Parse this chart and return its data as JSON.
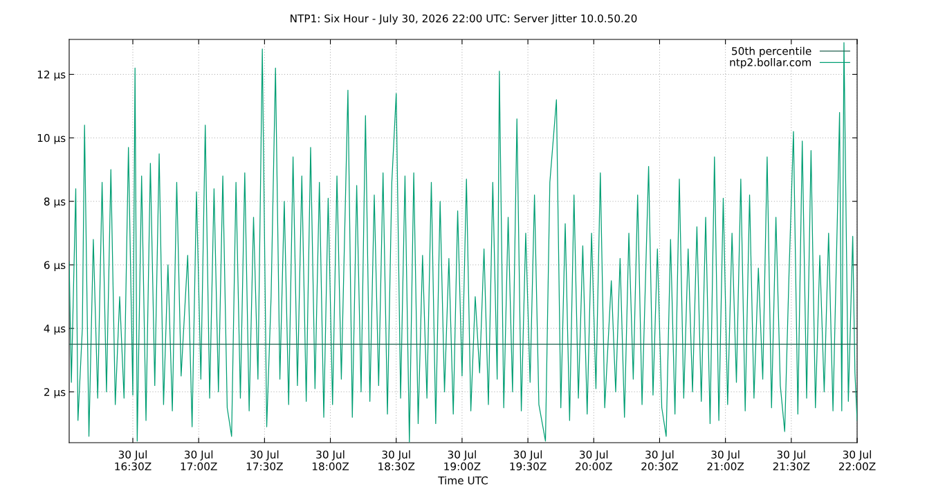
{
  "chart_data": {
    "type": "line",
    "title": "NTP1: Six Hour - July 30, 2026 22:00 UTC: Server Jitter 10.0.50.20",
    "xlabel": "Time UTC",
    "xlim": [
      "2026-07-30T16:01",
      "2026-07-30T22:00"
    ],
    "xticks": [
      {
        "value": "2026-07-30T16:30",
        "label": "30 Jul\n16:30Z"
      },
      {
        "value": "2026-07-30T17:00",
        "label": "30 Jul\n17:00Z"
      },
      {
        "value": "2026-07-30T17:30",
        "label": "30 Jul\n17:30Z"
      },
      {
        "value": "2026-07-30T18:00",
        "label": "30 Jul\n18:00Z"
      },
      {
        "value": "2026-07-30T18:30",
        "label": "30 Jul\n18:30Z"
      },
      {
        "value": "2026-07-30T19:00",
        "label": "30 Jul\n19:00Z"
      },
      {
        "value": "2026-07-30T19:30",
        "label": "30 Jul\n19:30Z"
      },
      {
        "value": "2026-07-30T20:00",
        "label": "30 Jul\n20:00Z"
      },
      {
        "value": "2026-07-30T20:30",
        "label": "30 Jul\n20:30Z"
      },
      {
        "value": "2026-07-30T21:00",
        "label": "30 Jul\n21:00Z"
      },
      {
        "value": "2026-07-30T21:30",
        "label": "30 Jul\n21:30Z"
      },
      {
        "value": "2026-07-30T22:00",
        "label": "30 Jul\n22:00Z"
      }
    ],
    "ylim": [
      0.4,
      13.1
    ],
    "yticks": [
      {
        "value": 2,
        "label": "2 µs"
      },
      {
        "value": 4,
        "label": "4 µs"
      },
      {
        "value": 6,
        "label": "6 µs"
      },
      {
        "value": 8,
        "label": "8 µs"
      },
      {
        "value": 10,
        "label": "10 µs"
      },
      {
        "value": 12,
        "label": "12 µs"
      }
    ],
    "grid": true,
    "legend": "top right",
    "line_style": "solid",
    "series": [
      {
        "name": "50th percentile",
        "color": "#1f5f4c",
        "x": [
          "2026-07-30T16:01",
          "2026-07-30T22:00"
        ],
        "values": [
          3.5,
          3.5
        ]
      },
      {
        "name": "ntp2.bollar.com",
        "color": "#009e73",
        "x": [
          "2026-07-30T16:01",
          "2026-07-30T16:02",
          "2026-07-30T16:04",
          "2026-07-30T16:05",
          "2026-07-30T16:07",
          "2026-07-30T16:08",
          "2026-07-30T16:10",
          "2026-07-30T16:12",
          "2026-07-30T16:14",
          "2026-07-30T16:16",
          "2026-07-30T16:18",
          "2026-07-30T16:20",
          "2026-07-30T16:22",
          "2026-07-30T16:24",
          "2026-07-30T16:26",
          "2026-07-30T16:28",
          "2026-07-30T16:30",
          "2026-07-30T16:31",
          "2026-07-30T16:32",
          "2026-07-30T16:34",
          "2026-07-30T16:36",
          "2026-07-30T16:38",
          "2026-07-30T16:40",
          "2026-07-30T16:42",
          "2026-07-30T16:44",
          "2026-07-30T16:46",
          "2026-07-30T16:48",
          "2026-07-30T16:50",
          "2026-07-30T16:52",
          "2026-07-30T16:55",
          "2026-07-30T16:57",
          "2026-07-30T16:59",
          "2026-07-30T17:01",
          "2026-07-30T17:03",
          "2026-07-30T17:05",
          "2026-07-30T17:07",
          "2026-07-30T17:09",
          "2026-07-30T17:11",
          "2026-07-30T17:13",
          "2026-07-30T17:15",
          "2026-07-30T17:17",
          "2026-07-30T17:19",
          "2026-07-30T17:21",
          "2026-07-30T17:23",
          "2026-07-30T17:25",
          "2026-07-30T17:27",
          "2026-07-30T17:29",
          "2026-07-30T17:31",
          "2026-07-30T17:33",
          "2026-07-30T17:35",
          "2026-07-30T17:37",
          "2026-07-30T17:39",
          "2026-07-30T17:41",
          "2026-07-30T17:43",
          "2026-07-30T17:45",
          "2026-07-30T17:47",
          "2026-07-30T17:49",
          "2026-07-30T17:51",
          "2026-07-30T17:53",
          "2026-07-30T17:55",
          "2026-07-30T17:57",
          "2026-07-30T17:59",
          "2026-07-30T18:01",
          "2026-07-30T18:03",
          "2026-07-30T18:05",
          "2026-07-30T18:08",
          "2026-07-30T18:10",
          "2026-07-30T18:12",
          "2026-07-30T18:14",
          "2026-07-30T18:16",
          "2026-07-30T18:18",
          "2026-07-30T18:20",
          "2026-07-30T18:22",
          "2026-07-30T18:24",
          "2026-07-30T18:26",
          "2026-07-30T18:28",
          "2026-07-30T18:30",
          "2026-07-30T18:32",
          "2026-07-30T18:34",
          "2026-07-30T18:36",
          "2026-07-30T18:38",
          "2026-07-30T18:40",
          "2026-07-30T18:42",
          "2026-07-30T18:44",
          "2026-07-30T18:46",
          "2026-07-30T18:48",
          "2026-07-30T18:50",
          "2026-07-30T18:52",
          "2026-07-30T18:54",
          "2026-07-30T18:56",
          "2026-07-30T18:58",
          "2026-07-30T19:00",
          "2026-07-30T19:02",
          "2026-07-30T19:04",
          "2026-07-30T19:06",
          "2026-07-30T19:08",
          "2026-07-30T19:10",
          "2026-07-30T19:12",
          "2026-07-30T19:14",
          "2026-07-30T19:16",
          "2026-07-30T19:17",
          "2026-07-30T19:19",
          "2026-07-30T19:21",
          "2026-07-30T19:23",
          "2026-07-30T19:25",
          "2026-07-30T19:27",
          "2026-07-30T19:29",
          "2026-07-30T19:31",
          "2026-07-30T19:33",
          "2026-07-30T19:35",
          "2026-07-30T19:38",
          "2026-07-30T19:40",
          "2026-07-30T19:43",
          "2026-07-30T19:45",
          "2026-07-30T19:47",
          "2026-07-30T19:49",
          "2026-07-30T19:51",
          "2026-07-30T19:53",
          "2026-07-30T19:55",
          "2026-07-30T19:57",
          "2026-07-30T19:59",
          "2026-07-30T20:01",
          "2026-07-30T20:03",
          "2026-07-30T20:05",
          "2026-07-30T20:08",
          "2026-07-30T20:10",
          "2026-07-30T20:12",
          "2026-07-30T20:14",
          "2026-07-30T20:16",
          "2026-07-30T20:18",
          "2026-07-30T20:20",
          "2026-07-30T20:22",
          "2026-07-30T20:25",
          "2026-07-30T20:27",
          "2026-07-30T20:29",
          "2026-07-30T20:31",
          "2026-07-30T20:33",
          "2026-07-30T20:35",
          "2026-07-30T20:37",
          "2026-07-30T20:39",
          "2026-07-30T20:41",
          "2026-07-30T20:43",
          "2026-07-30T20:45",
          "2026-07-30T20:47",
          "2026-07-30T20:49",
          "2026-07-30T20:51",
          "2026-07-30T20:53",
          "2026-07-30T20:55",
          "2026-07-30T20:57",
          "2026-07-30T20:59",
          "2026-07-30T21:01",
          "2026-07-30T21:03",
          "2026-07-30T21:05",
          "2026-07-30T21:07",
          "2026-07-30T21:09",
          "2026-07-30T21:11",
          "2026-07-30T21:13",
          "2026-07-30T21:15",
          "2026-07-30T21:17",
          "2026-07-30T21:19",
          "2026-07-30T21:21",
          "2026-07-30T21:23",
          "2026-07-30T21:25",
          "2026-07-30T21:27",
          "2026-07-30T21:29",
          "2026-07-30T21:31",
          "2026-07-30T21:33",
          "2026-07-30T21:35",
          "2026-07-30T21:37",
          "2026-07-30T21:39",
          "2026-07-30T21:41",
          "2026-07-30T21:43",
          "2026-07-30T21:45",
          "2026-07-30T21:47",
          "2026-07-30T21:49",
          "2026-07-30T21:51",
          "2026-07-30T21:52",
          "2026-07-30T21:53",
          "2026-07-30T21:54",
          "2026-07-30T21:56",
          "2026-07-30T21:58",
          "2026-07-30T21:59",
          "2026-07-30T22:00"
        ],
        "values": [
          6.1,
          2.3,
          8.4,
          1.1,
          4.0,
          10.4,
          0.6,
          6.8,
          1.8,
          8.6,
          2.0,
          9.0,
          1.6,
          5.0,
          1.8,
          9.7,
          1.9,
          12.2,
          0.45,
          8.8,
          1.1,
          9.2,
          2.2,
          9.5,
          1.6,
          6.0,
          1.4,
          8.6,
          2.5,
          6.3,
          0.9,
          8.3,
          2.4,
          10.4,
          1.8,
          8.4,
          2.0,
          8.8,
          1.5,
          0.6,
          8.6,
          1.8,
          8.9,
          1.4,
          7.5,
          2.4,
          12.8,
          0.9,
          5.0,
          12.2,
          2.4,
          8.0,
          1.6,
          9.4,
          2.2,
          8.8,
          1.7,
          9.7,
          2.1,
          8.6,
          1.2,
          8.1,
          1.6,
          8.8,
          2.4,
          11.5,
          1.2,
          8.5,
          2.0,
          10.7,
          1.7,
          8.2,
          2.2,
          8.9,
          1.3,
          8.6,
          11.4,
          1.8,
          8.8,
          0.42,
          8.9,
          1.0,
          6.3,
          1.8,
          8.6,
          1.0,
          8.0,
          2.0,
          6.2,
          1.3,
          7.7,
          2.5,
          8.7,
          1.4,
          5.0,
          2.6,
          6.5,
          1.6,
          8.6,
          2.4,
          12.1,
          1.5,
          7.5,
          2.0,
          10.6,
          1.4,
          7.0,
          2.3,
          8.2,
          1.6,
          0.45,
          8.6,
          11.2,
          1.5,
          7.3,
          1.1,
          8.2,
          1.8,
          6.6,
          1.3,
          7.0,
          2.1,
          8.9,
          1.5,
          5.5,
          2.0,
          6.2,
          1.2,
          7.0,
          2.4,
          8.2,
          1.6,
          9.1,
          1.9,
          6.5,
          1.5,
          0.6,
          6.8,
          1.3,
          8.7,
          1.8,
          6.5,
          2.0,
          7.2,
          1.7,
          7.5,
          1.0,
          9.4,
          1.1,
          8.1,
          1.6,
          7.0,
          2.3,
          8.7,
          1.4,
          8.2,
          1.8,
          5.9,
          2.4,
          9.4,
          1.5,
          7.5,
          2.2,
          0.75,
          5.8,
          10.2,
          1.3,
          9.9,
          1.8,
          9.6,
          1.5,
          6.3,
          2.0,
          7.0,
          1.4,
          7.5,
          10.8,
          1.4,
          13.0,
          1.7,
          6.9,
          2.6,
          1.1
        ]
      }
    ]
  }
}
